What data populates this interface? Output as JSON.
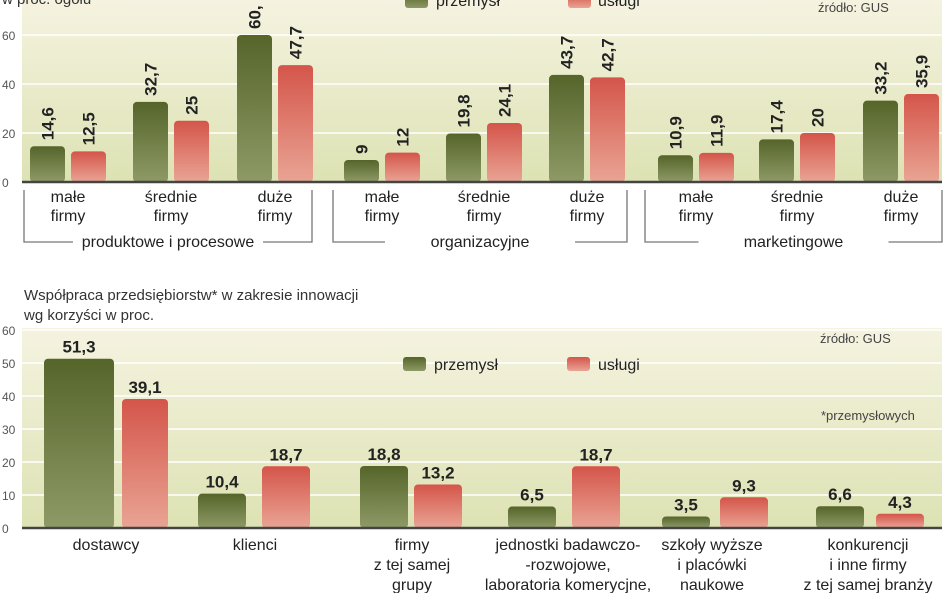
{
  "colors": {
    "przemysl": "#5b6b2b",
    "uslugi": "#d65a4c",
    "background": "#eef0cc"
  },
  "chart_data": [
    {
      "type": "bar",
      "subtitle": "w proc. ogółu",
      "source": "źródło: GUS",
      "legend": [
        "przemysł",
        "usługi"
      ],
      "legend_placement": "top-center",
      "ylim": [
        0,
        70
      ],
      "yticks": [
        "0",
        "20",
        "40",
        "60"
      ],
      "grid": true,
      "groups": [
        {
          "label": "produktowe i procesowe",
          "categories": [
            {
              "label": [
                "małe",
                "firmy"
              ],
              "values": [
                14.6,
                12.5
              ],
              "labels": [
                "14,6",
                "12,5"
              ]
            },
            {
              "label": [
                "średnie",
                "firmy"
              ],
              "values": [
                32.7,
                25
              ],
              "labels": [
                "32,7",
                "25"
              ]
            },
            {
              "label": [
                "duże",
                "firmy"
              ],
              "values": [
                60,
                47.7
              ],
              "labels": [
                "60,",
                "47,7"
              ]
            }
          ]
        },
        {
          "label": "organizacyjne",
          "categories": [
            {
              "label": [
                "małe",
                "firmy"
              ],
              "values": [
                9,
                12
              ],
              "labels": [
                "9",
                "12"
              ]
            },
            {
              "label": [
                "średnie",
                "firmy"
              ],
              "values": [
                19.8,
                24.1
              ],
              "labels": [
                "19,8",
                "24,1"
              ]
            },
            {
              "label": [
                "duże",
                "firmy"
              ],
              "values": [
                43.7,
                42.7
              ],
              "labels": [
                "43,7",
                "42,7"
              ]
            }
          ]
        },
        {
          "label": "marketingowe",
          "categories": [
            {
              "label": [
                "małe",
                "firmy"
              ],
              "values": [
                10.9,
                11.9
              ],
              "labels": [
                "10,9",
                "11,9"
              ]
            },
            {
              "label": [
                "średnie",
                "firmy"
              ],
              "values": [
                17.4,
                20
              ],
              "labels": [
                "17,4",
                "20"
              ]
            },
            {
              "label": [
                "duże",
                "firmy"
              ],
              "values": [
                33.2,
                35.9
              ],
              "labels": [
                "33,2",
                "35,9"
              ]
            }
          ]
        }
      ]
    },
    {
      "type": "bar",
      "title": [
        "Współpraca przedsiębiorstw* w zakresie innowacji",
        "wg korzyści w proc."
      ],
      "source": "źródło: GUS",
      "footnote": "*przemysłowych",
      "legend": [
        "przemysł",
        "usługi"
      ],
      "legend_placement": "top-center",
      "ylim": [
        0,
        60
      ],
      "yticks": [
        "0",
        "10",
        "20",
        "30",
        "40",
        "50",
        "60"
      ],
      "grid": true,
      "categories": [
        {
          "label": [
            "dostawcy"
          ],
          "values": [
            51.3,
            39.1
          ],
          "labels": [
            "51,3",
            "39,1"
          ]
        },
        {
          "label": [
            "klienci"
          ],
          "values": [
            10.4,
            18.7
          ],
          "labels": [
            "10,4",
            "18,7"
          ]
        },
        {
          "label": [
            "firmy",
            "z tej samej",
            "grupy"
          ],
          "values": [
            18.8,
            13.2
          ],
          "labels": [
            "18,8",
            "13,2"
          ]
        },
        {
          "label": [
            "jednostki badawczo-",
            "-rozwojowe,",
            "laboratoria komerycjne,"
          ],
          "values": [
            6.5,
            18.7
          ],
          "labels": [
            "6,5",
            "18,7"
          ]
        },
        {
          "label": [
            "szkoły wyższe",
            "i placówki",
            "naukowe"
          ],
          "values": [
            3.5,
            9.3
          ],
          "labels": [
            "3,5",
            "9,3"
          ]
        },
        {
          "label": [
            "konkurencji",
            "i inne firmy",
            "z tej samej branży"
          ],
          "values": [
            6.6,
            4.3
          ],
          "labels": [
            "6,6",
            "4,3"
          ]
        }
      ]
    }
  ]
}
